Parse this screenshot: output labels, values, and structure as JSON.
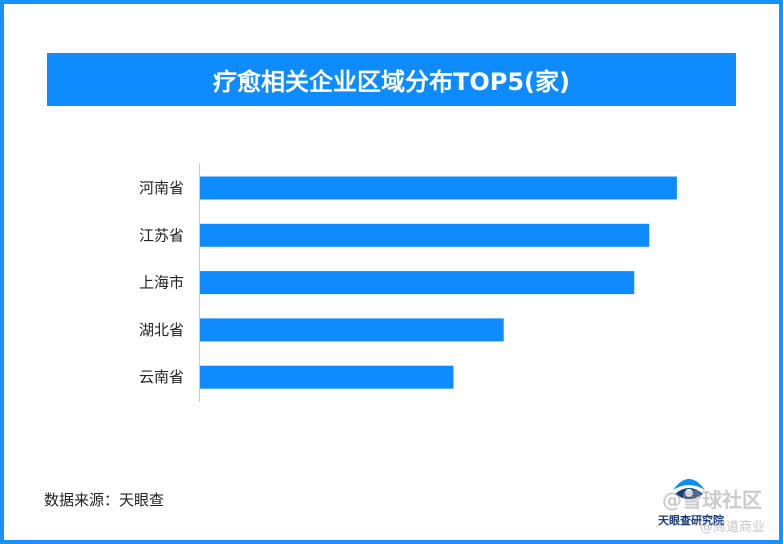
{
  "title": "疗愈相关企业区域分布TOP5(家)",
  "source": "数据来源：天眼查",
  "logo": {
    "text": "天眼查研究院"
  },
  "watermark": {
    "line1": "@雪球社区",
    "line2": "@周道商业"
  },
  "colors": {
    "accent": "#0d8bff",
    "bar": "#0d8bff",
    "frame": "#1a90ff"
  },
  "chart_data": {
    "type": "bar",
    "orientation": "horizontal",
    "categories": [
      "河南省",
      "江苏省",
      "上海市",
      "湖北省",
      "云南省"
    ],
    "values": [
      95,
      89.5,
      86.5,
      60.5,
      50.5
    ],
    "title": "疗愈相关企业区域分布TOP5(家)",
    "xlabel": "",
    "ylabel": "",
    "xlim": [
      0,
      100
    ],
    "grid": false,
    "legend": "none"
  }
}
